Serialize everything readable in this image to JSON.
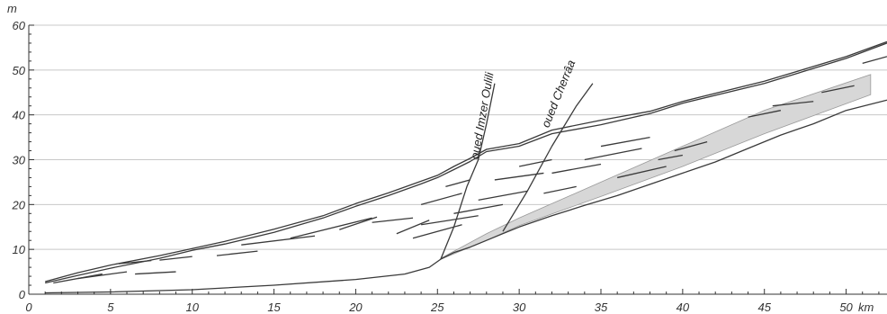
{
  "chart_data": {
    "type": "line",
    "y_unit_label": "m",
    "x_unit_label": "km",
    "xlim": [
      0,
      52.5
    ],
    "ylim": [
      0,
      60
    ],
    "x_ticks": [
      0,
      5,
      10,
      15,
      20,
      25,
      30,
      35,
      40,
      45,
      50
    ],
    "y_ticks": [
      0,
      10,
      20,
      30,
      40,
      50,
      60
    ],
    "grid": "horizontal",
    "colors": {
      "line": "#3a3a3a",
      "grid": "#c8c8c8",
      "shade_fill": "#d7d7d7",
      "shade_edge": "#9a9a9a"
    },
    "annotations": [
      {
        "text": "oued Imzer Oulili",
        "x": 27.5,
        "y": 30,
        "angle": -80
      },
      {
        "text": "oued Cherrâa",
        "x": 31.8,
        "y": 37,
        "angle": -68
      }
    ],
    "series": [
      {
        "role": "upper profile",
        "x": [
          1,
          3,
          5,
          8,
          10,
          12,
          15,
          18,
          20,
          22,
          24,
          25,
          26,
          27,
          28,
          30,
          32,
          35,
          38,
          40,
          45,
          50,
          52.5
        ],
        "y": [
          2.8,
          4.8,
          6.5,
          8.6,
          10.2,
          11.8,
          14.5,
          17.5,
          20.2,
          22.6,
          25.2,
          26.5,
          28.5,
          30.3,
          32.3,
          33.6,
          36.6,
          38.8,
          40.8,
          43,
          47.5,
          53,
          56.3
        ]
      },
      {
        "role": "upper profile (second)",
        "x": [
          1,
          3,
          5,
          8,
          10,
          12,
          15,
          18,
          20,
          22,
          24,
          25,
          26,
          27,
          28,
          30,
          32,
          35,
          38,
          40,
          45,
          50,
          52.5
        ],
        "y": [
          2.5,
          4.2,
          5.8,
          8,
          9.8,
          11.2,
          13.8,
          17,
          19.6,
          22,
          24.6,
          26,
          27.8,
          29.6,
          31.8,
          33,
          35.8,
          37.8,
          40.3,
          42.6,
          47,
          52.6,
          56
        ]
      },
      {
        "role": "lower profile",
        "x": [
          1,
          5,
          10,
          15,
          20,
          23,
          24.5,
          25.2,
          26,
          27,
          28,
          29,
          30,
          32,
          34,
          36,
          38,
          40,
          42,
          44,
          46,
          48,
          50,
          52.5
        ],
        "y": [
          0.3,
          0.5,
          1,
          2,
          3.3,
          4.5,
          6,
          7.8,
          9.3,
          10.5,
          12,
          13.5,
          15,
          17.5,
          19.8,
          22,
          24.5,
          27,
          29.5,
          32.5,
          35.5,
          38,
          41,
          43.3
        ]
      },
      {
        "role": "valley line oued Imzer Oulili",
        "x": [
          25.2,
          26,
          26.8,
          27.5,
          28,
          28.5
        ],
        "y": [
          7.8,
          15,
          24,
          30,
          38,
          47
        ]
      },
      {
        "role": "valley line oued Cherrâa",
        "x": [
          29,
          30.5,
          32,
          33.5,
          34.5
        ],
        "y": [
          14,
          23,
          33,
          42,
          47
        ]
      },
      {
        "role": "shaded terrace upper edge",
        "x": [
          25.2,
          28,
          30,
          35,
          40,
          45,
          51.5
        ],
        "y": [
          8,
          13.5,
          17,
          25,
          33,
          41,
          49
        ]
      },
      {
        "role": "shaded terrace lower edge",
        "x": [
          25.2,
          28,
          30,
          35,
          40,
          45,
          51.5
        ],
        "y": [
          7.8,
          12,
          15.3,
          21.8,
          28.5,
          35.8,
          44.5
        ]
      }
    ],
    "segments": [
      {
        "x": [
          1.5,
          4.5
        ],
        "y": [
          2.5,
          4.5
        ]
      },
      {
        "x": [
          3,
          6
        ],
        "y": [
          3.5,
          5
        ]
      },
      {
        "x": [
          5.5,
          7.5
        ],
        "y": [
          6.8,
          7.5
        ]
      },
      {
        "x": [
          6.5,
          9
        ],
        "y": [
          4.5,
          5
        ]
      },
      {
        "x": [
          8,
          10
        ],
        "y": [
          7.6,
          8.4
        ]
      },
      {
        "x": [
          11.5,
          14
        ],
        "y": [
          8.6,
          9.6
        ]
      },
      {
        "x": [
          13,
          17.5
        ],
        "y": [
          11,
          13
        ]
      },
      {
        "x": [
          16,
          21
        ],
        "y": [
          12.5,
          17
        ]
      },
      {
        "x": [
          19,
          21.3
        ],
        "y": [
          14.4,
          17.2
        ]
      },
      {
        "x": [
          21,
          23.5
        ],
        "y": [
          16,
          17
        ]
      },
      {
        "x": [
          22.5,
          24.5
        ],
        "y": [
          13.5,
          16.5
        ]
      },
      {
        "x": [
          23.5,
          26.5
        ],
        "y": [
          12.5,
          15.5
        ]
      },
      {
        "x": [
          24,
          27.5
        ],
        "y": [
          15.5,
          17.5
        ]
      },
      {
        "x": [
          24,
          26.5
        ],
        "y": [
          20,
          22.5
        ]
      },
      {
        "x": [
          25.5,
          27
        ],
        "y": [
          24,
          25.5
        ]
      },
      {
        "x": [
          26,
          29
        ],
        "y": [
          18,
          20
        ]
      },
      {
        "x": [
          27.5,
          30.5
        ],
        "y": [
          21,
          23
        ]
      },
      {
        "x": [
          28.5,
          31.5
        ],
        "y": [
          25.5,
          27
        ]
      },
      {
        "x": [
          30,
          32
        ],
        "y": [
          28.5,
          30
        ]
      },
      {
        "x": [
          31.5,
          33.5
        ],
        "y": [
          22.5,
          24
        ]
      },
      {
        "x": [
          32,
          35
        ],
        "y": [
          27,
          29
        ]
      },
      {
        "x": [
          34,
          37.5
        ],
        "y": [
          30,
          32.5
        ]
      },
      {
        "x": [
          35,
          38
        ],
        "y": [
          33,
          35
        ]
      },
      {
        "x": [
          36,
          39
        ],
        "y": [
          26,
          28.5
        ]
      },
      {
        "x": [
          38.5,
          40
        ],
        "y": [
          30,
          31
        ]
      },
      {
        "x": [
          39.5,
          41.5
        ],
        "y": [
          32,
          34
        ]
      },
      {
        "x": [
          44,
          46
        ],
        "y": [
          39.5,
          41
        ]
      },
      {
        "x": [
          45.5,
          48
        ],
        "y": [
          42,
          43
        ]
      },
      {
        "x": [
          48.5,
          50.5
        ],
        "y": [
          45,
          46.5
        ]
      },
      {
        "x": [
          51,
          52.5
        ],
        "y": [
          51.5,
          53
        ]
      }
    ]
  }
}
